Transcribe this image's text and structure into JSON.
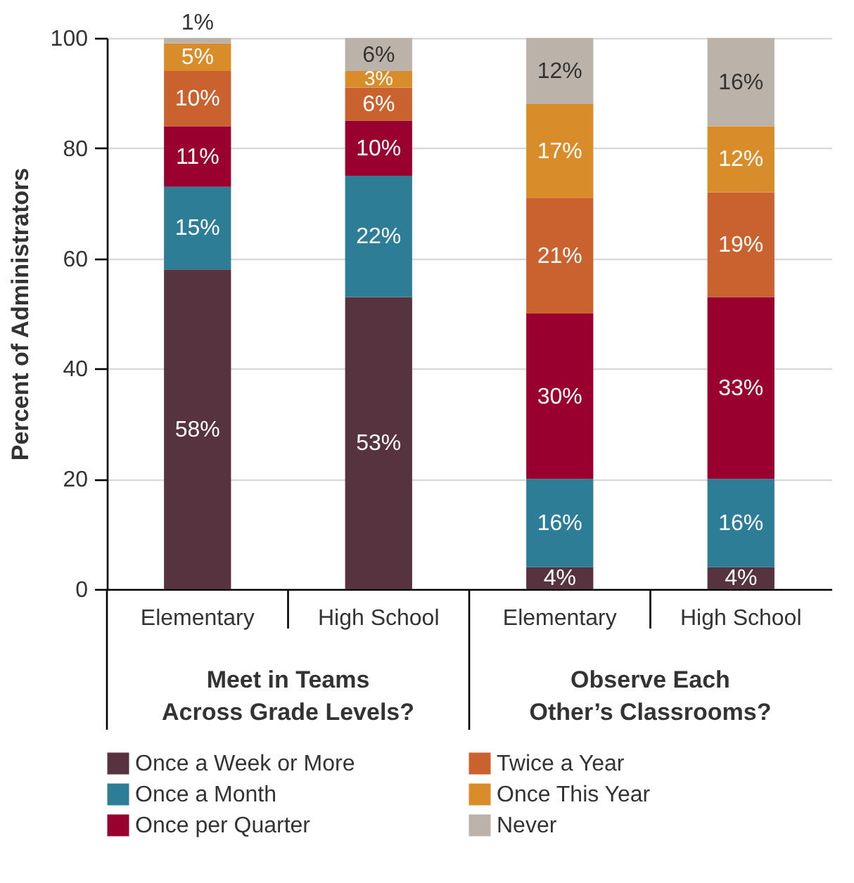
{
  "chart_data": {
    "type": "bar",
    "stacked": true,
    "categories": [
      "Elementary",
      "High School",
      "Elementary",
      "High School"
    ],
    "ylabel": "Percent of Administrators",
    "ylim": [
      0,
      100
    ],
    "yticks": [
      0,
      20,
      40,
      60,
      80,
      100
    ],
    "grid": "y",
    "legend": "bottom",
    "annotations": [
      "Meet in Teams\nAcross Grade Levels?",
      "Observe Each\nOther’s Classrooms?"
    ],
    "series": [
      {
        "name": "Once a Week or More",
        "color": "#56333f",
        "values": [
          58,
          53,
          4,
          4
        ],
        "value_labels": [
          "58%",
          "53%",
          "4%",
          "4%"
        ]
      },
      {
        "name": "Once a Month",
        "color": "#2e7d96",
        "values": [
          15,
          22,
          16,
          16
        ],
        "value_labels": [
          "15%",
          "22%",
          "16%",
          "16%"
        ]
      },
      {
        "name": "Once per Quarter",
        "color": "#9a002f",
        "values": [
          11,
          10,
          30,
          33
        ],
        "value_labels": [
          "11%",
          "10%",
          "30%",
          "33%"
        ]
      },
      {
        "name": "Twice a Year",
        "color": "#ca6230",
        "values": [
          10,
          6,
          21,
          19
        ],
        "value_labels": [
          "10%",
          "6%",
          "21%",
          "19%"
        ]
      },
      {
        "name": "Once This Year",
        "color": "#d98d2a",
        "values": [
          5,
          3,
          17,
          12
        ],
        "value_labels": [
          "5%",
          "3%",
          "17%",
          "12%"
        ]
      },
      {
        "name": "Never",
        "color": "#bbb2a9",
        "values": [
          1,
          6,
          12,
          16
        ],
        "value_labels": [
          "1%",
          "6%",
          "12%",
          "16%"
        ]
      }
    ]
  }
}
